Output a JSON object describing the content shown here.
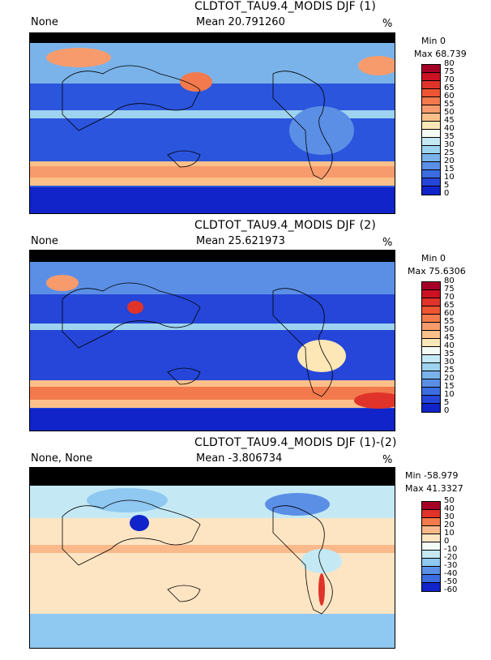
{
  "panels": [
    {
      "title": "CLDTOT_TAU9.4_MODIS DJF (1)",
      "left_label": "None",
      "mean_label": "Mean 20.791260",
      "units": "%",
      "min_label": "Min 0",
      "max_label": "Max 68.739",
      "levels": [
        "80",
        "75",
        "70",
        "65",
        "60",
        "55",
        "50",
        "45",
        "40",
        "35",
        "30",
        "25",
        "20",
        "15",
        "10",
        "5",
        "0"
      ],
      "colors": [
        "#a50026",
        "#cc1122",
        "#e0332a",
        "#ee5533",
        "#f27a4c",
        "#f89b6c",
        "#fbc08a",
        "#fde7b7",
        "#f4fbf4",
        "#c4e9f5",
        "#9dd3ee",
        "#7ab3ea",
        "#5b8fe6",
        "#3b6de0",
        "#2546d8",
        "#1024c9"
      ]
    },
    {
      "title": "CLDTOT_TAU9.4_MODIS DJF (2)",
      "left_label": "None",
      "mean_label": "Mean 25.621973",
      "units": "%",
      "min_label": "Min 0",
      "max_label": "Max 75.6306",
      "levels": [
        "80",
        "75",
        "70",
        "65",
        "60",
        "55",
        "50",
        "45",
        "40",
        "35",
        "30",
        "25",
        "20",
        "15",
        "10",
        "5",
        "0"
      ],
      "colors": [
        "#a50026",
        "#cc1122",
        "#e0332a",
        "#ee5533",
        "#f27a4c",
        "#f89b6c",
        "#fbc08a",
        "#fde7b7",
        "#f4fbf4",
        "#c4e9f5",
        "#9dd3ee",
        "#7ab3ea",
        "#5b8fe6",
        "#3b6de0",
        "#2546d8",
        "#1024c9"
      ]
    },
    {
      "title": "CLDTOT_TAU9.4_MODIS DJF (1)-(2)",
      "left_label": "None, None",
      "mean_label": "Mean -3.806734",
      "units": "%",
      "min_label": "Min -58.979",
      "max_label": "Max 41.3327",
      "levels": [
        "50",
        "40",
        "30",
        "20",
        "10",
        "0",
        "-10",
        "-20",
        "-30",
        "-40",
        "-50",
        "-60"
      ],
      "colors": [
        "#a50026",
        "#e0332a",
        "#f27a4c",
        "#f9b98a",
        "#fde5c3",
        "#f3fbf6",
        "#c4e9f5",
        "#8fc8f0",
        "#5b8fe6",
        "#3b6de0",
        "#1024c9"
      ]
    }
  ]
}
